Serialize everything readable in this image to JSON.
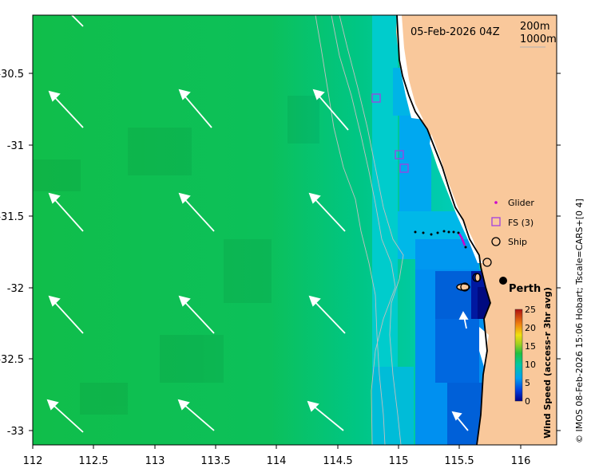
{
  "map": {
    "timestamp": "05-Feb-2026 04Z",
    "contour_labels": [
      "200m",
      "1000m"
    ],
    "city": "Perth",
    "credit": "© IMOS 08-Feb-2026 15:06 Hobart; Tscale=CARS+[0 4]",
    "x_ticks": [
      "112",
      "112.5",
      "113",
      "113.5",
      "114",
      "114.5",
      "115",
      "115.5",
      "116"
    ],
    "y_ticks": [
      "-30.5",
      "-31",
      "-31.5",
      "-32",
      "-32.5",
      "-33"
    ],
    "legend": {
      "glider": "Glider",
      "fs": "FS (3)",
      "ship": "Ship"
    },
    "colorbar": {
      "title": "Wind Speed (access-r 3hr avg)",
      "ticks": [
        "25",
        "20",
        "15",
        "10",
        "5",
        "0"
      ],
      "range": [
        0,
        25
      ]
    },
    "colors": {
      "land": "#f9c89b",
      "offshore": "#10c04a",
      "coastal": "#00c8c8",
      "nearshore": "#0090f0",
      "calm": "#0050c8",
      "glider": "#cc00cc",
      "fs": "#a040e0"
    }
  }
}
